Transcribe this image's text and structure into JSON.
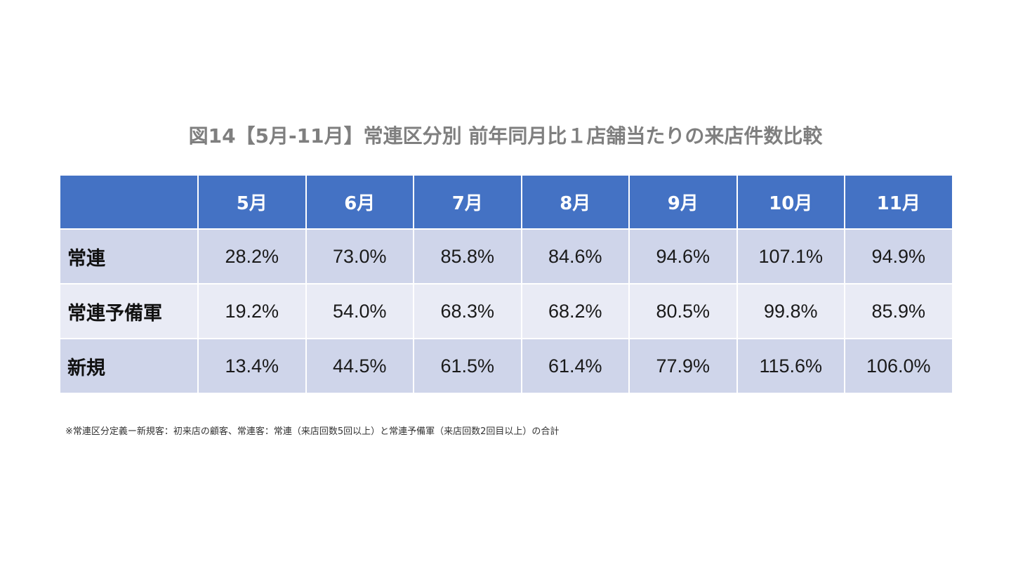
{
  "chart_data": {
    "type": "table",
    "title": "図14【5月-11月】常連区分別 前年同月比１店舗当たりの来店件数比較",
    "columns": [
      "5月",
      "6月",
      "7月",
      "8月",
      "9月",
      "10月",
      "11月"
    ],
    "rows": [
      {
        "label": "常連",
        "values": [
          "28.2%",
          "73.0%",
          "85.8%",
          "84.6%",
          "94.6%",
          "107.1%",
          "94.9%"
        ]
      },
      {
        "label": "常連予備軍",
        "values": [
          "19.2%",
          "54.0%",
          "68.3%",
          "68.2%",
          "80.5%",
          "99.8%",
          "85.9%"
        ]
      },
      {
        "label": "新規",
        "values": [
          "13.4%",
          "44.5%",
          "61.5%",
          "61.4%",
          "77.9%",
          "115.6%",
          "106.0%"
        ]
      }
    ],
    "note": "※常連区分定義ー新規客：初来店の顧客、常連客：常連（来店回数5回以上）と常連予備軍（来店回数2回目以上）の合計"
  },
  "colors": {
    "header_bg": "#4472c4",
    "header_text": "#ffffff",
    "row_odd_bg": "#cfd5ea",
    "row_even_bg": "#e9ebf5",
    "title_text": "#7f7f7f"
  }
}
